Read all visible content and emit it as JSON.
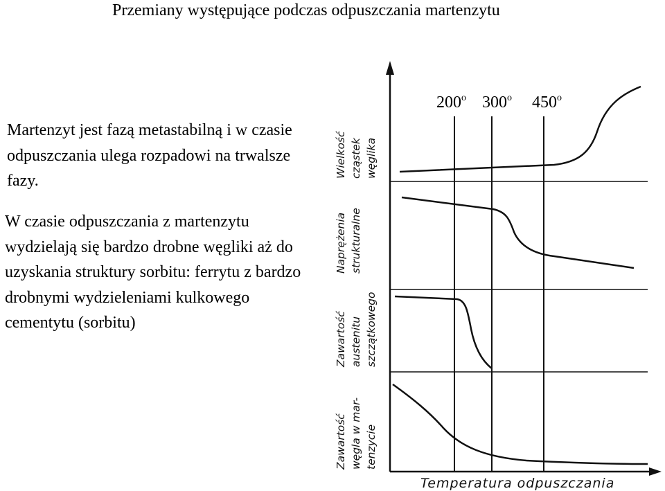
{
  "title": "Przemiany występujące podczas odpuszczania martenzytu",
  "paragraph1": "Martenzyt jest fazą metastabilną i w czasie odpuszczania ulega rozpadowi na trwalsze fazy.",
  "paragraph2": "W czasie odpuszczania z martenzytu wydzielają się bardzo drobne węgliki aż do uzyskania struktury sorbitu: ferrytu z bardzo drobnymi wydzieleniami kulkowego cementytu (sorbitu)",
  "diagram": {
    "temperatures": [
      {
        "value": "200",
        "unit": "o"
      },
      {
        "value": "300",
        "unit": "o"
      },
      {
        "value": "450",
        "unit": "o"
      }
    ],
    "x_axis_label": "Temperatura odpuszczania",
    "panels": [
      {
        "label_lines": [
          "Wielkość",
          "cząstek",
          "węglika"
        ]
      },
      {
        "label_lines": [
          "Naprężenia",
          "strukturalne"
        ]
      },
      {
        "label_lines": [
          "Zawartość",
          "austenitu",
          "szczątkowego"
        ]
      },
      {
        "label_lines": [
          "Zawartość",
          "węgla w mar-",
          "tenzycie"
        ]
      }
    ]
  }
}
